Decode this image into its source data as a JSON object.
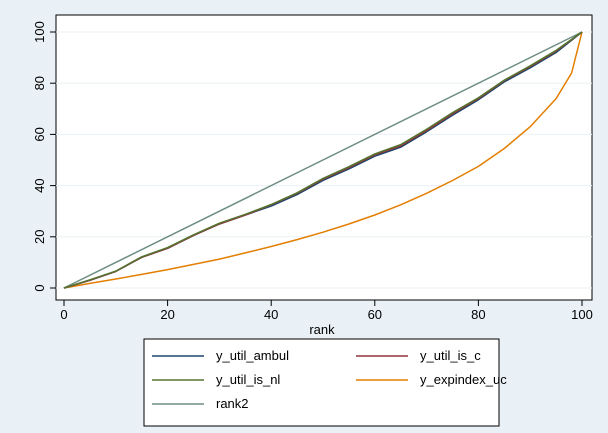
{
  "chart_data": {
    "type": "line",
    "title": "",
    "xlabel": "rank",
    "ylabel": "",
    "xlim": [
      0,
      100
    ],
    "ylim": [
      0,
      100
    ],
    "x_ticks": [
      0,
      20,
      40,
      60,
      80,
      100
    ],
    "y_ticks": [
      0,
      20,
      40,
      60,
      80,
      100
    ],
    "x_tick_labels": [
      "0",
      "20",
      "40",
      "60",
      "80",
      "100"
    ],
    "y_tick_labels": [
      "0",
      "20",
      "40",
      "60",
      "80",
      "100"
    ],
    "grid": true,
    "legend_position": "bottom",
    "series": [
      {
        "name": "y_util_ambul",
        "color": "#1a476f",
        "x": [
          0,
          5,
          10,
          15,
          20,
          25,
          30,
          35,
          40,
          45,
          50,
          55,
          60,
          65,
          70,
          75,
          80,
          85,
          90,
          95,
          100
        ],
        "y": [
          0,
          3,
          6.5,
          12,
          15.5,
          20.5,
          25,
          28.5,
          32,
          36.5,
          42,
          46.5,
          51.5,
          55,
          61,
          67.5,
          73.5,
          80.5,
          86,
          92,
          100
        ]
      },
      {
        "name": "y_util_is_c",
        "color": "#90353b",
        "x": [
          0,
          5,
          10,
          15,
          20,
          25,
          30,
          35,
          40,
          45,
          50,
          55,
          60,
          65,
          70,
          75,
          80,
          85,
          90,
          95,
          100
        ],
        "y": [
          0,
          3,
          6.5,
          12,
          15.5,
          20.5,
          25,
          28.5,
          32.5,
          37,
          42.5,
          47,
          52,
          55.5,
          61.5,
          68,
          74,
          81,
          86.5,
          92.5,
          100
        ]
      },
      {
        "name": "y_util_is_nl",
        "color": "#55752f",
        "x": [
          0,
          5,
          10,
          15,
          20,
          25,
          30,
          35,
          40,
          45,
          50,
          55,
          60,
          65,
          70,
          75,
          80,
          85,
          90,
          95,
          100
        ],
        "y": [
          0,
          3.2,
          6.6,
          12.2,
          15.8,
          20.8,
          25.3,
          28.8,
          32.6,
          37.2,
          42.8,
          47.4,
          52.4,
          56,
          62,
          68.5,
          74.3,
          81.2,
          86.8,
          92.8,
          100
        ]
      },
      {
        "name": "y_expindex_uc",
        "color": "#e37e00",
        "x": [
          0,
          5,
          10,
          15,
          20,
          25,
          30,
          35,
          40,
          45,
          50,
          55,
          60,
          65,
          70,
          75,
          80,
          85,
          90,
          95,
          98,
          100
        ],
        "y": [
          0,
          1.8,
          3.5,
          5.3,
          7.2,
          9.2,
          11.3,
          13.7,
          16.2,
          18.9,
          21.8,
          25,
          28.5,
          32.5,
          37,
          42,
          47.5,
          54.5,
          63,
          74,
          84,
          100
        ]
      },
      {
        "name": "rank2",
        "color": "#6e8e84",
        "x": [
          0,
          100
        ],
        "y": [
          0,
          100
        ]
      }
    ]
  },
  "legend": {
    "items": [
      {
        "label": "y_util_ambul",
        "color": "#1a476f"
      },
      {
        "label": "y_util_is_c",
        "color": "#90353b"
      },
      {
        "label": "y_util_is_nl",
        "color": "#55752f"
      },
      {
        "label": "y_expindex_uc",
        "color": "#e37e00"
      },
      {
        "label": "rank2",
        "color": "#6e8e84"
      }
    ]
  }
}
